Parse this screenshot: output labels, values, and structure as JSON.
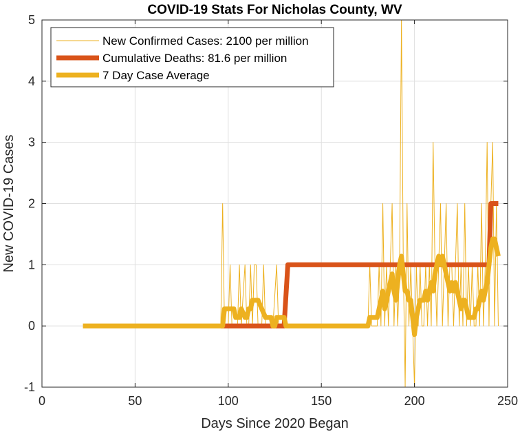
{
  "chart_data": {
    "type": "line",
    "title": "COVID-19 Stats For Nicholas County, WV",
    "xlabel": "Days Since 2020 Began",
    "ylabel": "New COVID-19 Cases",
    "xlim": [
      0,
      250
    ],
    "ylim": [
      -1,
      5
    ],
    "xticks": [
      0,
      50,
      100,
      150,
      200,
      250
    ],
    "yticks": [
      -1,
      0,
      1,
      2,
      3,
      4,
      5
    ],
    "grid": true,
    "legend_position": "top-left",
    "series": [
      {
        "name": "New Confirmed Cases: 2100 per million",
        "color": "#EDB120",
        "style": "thin",
        "points": [
          [
            22,
            0
          ],
          [
            96,
            0
          ],
          [
            97,
            2
          ],
          [
            98,
            0
          ],
          [
            100,
            0
          ],
          [
            101,
            1
          ],
          [
            102,
            0
          ],
          [
            105,
            0
          ],
          [
            106,
            1
          ],
          [
            107,
            0
          ],
          [
            109,
            1
          ],
          [
            110,
            0
          ],
          [
            111,
            0
          ],
          [
            112,
            1
          ],
          [
            113,
            0
          ],
          [
            114,
            1
          ],
          [
            115,
            1
          ],
          [
            116,
            0
          ],
          [
            118,
            0
          ],
          [
            119,
            1
          ],
          [
            120,
            0
          ],
          [
            122,
            0
          ],
          [
            123,
            0
          ],
          [
            124,
            0
          ],
          [
            126,
            1
          ],
          [
            127,
            0
          ],
          [
            130,
            0
          ],
          [
            131,
            0
          ],
          [
            175,
            0
          ],
          [
            176,
            1
          ],
          [
            177,
            0
          ],
          [
            179,
            0
          ],
          [
            180,
            0
          ],
          [
            181,
            1
          ],
          [
            182,
            0
          ],
          [
            183,
            2
          ],
          [
            184,
            0
          ],
          [
            185,
            1
          ],
          [
            186,
            0
          ],
          [
            187,
            1
          ],
          [
            188,
            2
          ],
          [
            189,
            0
          ],
          [
            190,
            1
          ],
          [
            191,
            0
          ],
          [
            192,
            1
          ],
          [
            193,
            5
          ],
          [
            194,
            1
          ],
          [
            195,
            -1
          ],
          [
            196,
            2
          ],
          [
            197,
            0
          ],
          [
            198,
            1
          ],
          [
            199,
            0
          ],
          [
            200,
            -1
          ],
          [
            201,
            1
          ],
          [
            202,
            0
          ],
          [
            203,
            1
          ],
          [
            204,
            0
          ],
          [
            205,
            0
          ],
          [
            206,
            1
          ],
          [
            207,
            0
          ],
          [
            208,
            1
          ],
          [
            209,
            0
          ],
          [
            210,
            3
          ],
          [
            211,
            1
          ],
          [
            212,
            0
          ],
          [
            213,
            1
          ],
          [
            214,
            2
          ],
          [
            215,
            0
          ],
          [
            216,
            1
          ],
          [
            217,
            2
          ],
          [
            218,
            0
          ],
          [
            219,
            1
          ],
          [
            220,
            1
          ],
          [
            221,
            0
          ],
          [
            222,
            1
          ],
          [
            223,
            2
          ],
          [
            224,
            0
          ],
          [
            225,
            1
          ],
          [
            226,
            0
          ],
          [
            227,
            2
          ],
          [
            228,
            0
          ],
          [
            229,
            1
          ],
          [
            230,
            0
          ],
          [
            231,
            1
          ],
          [
            232,
            0
          ],
          [
            233,
            0
          ],
          [
            234,
            1
          ],
          [
            235,
            0
          ],
          [
            236,
            2
          ],
          [
            237,
            0
          ],
          [
            238,
            1
          ],
          [
            239,
            3
          ],
          [
            240,
            0
          ],
          [
            241,
            2
          ],
          [
            242,
            3
          ],
          [
            243,
            0
          ],
          [
            244,
            2
          ],
          [
            245,
            0
          ]
        ]
      },
      {
        "name": "Cumulative Deaths: 81.6 per million",
        "color": "#D95319",
        "style": "thick",
        "points": [
          [
            96,
            0
          ],
          [
            130,
            0
          ],
          [
            132,
            1
          ],
          [
            240,
            1
          ],
          [
            241,
            2
          ],
          [
            245,
            2
          ]
        ]
      },
      {
        "name": "7 Day Case Average",
        "color": "#EDB120",
        "style": "thick",
        "points": [
          [
            22,
            0
          ],
          [
            97,
            0
          ],
          [
            98,
            0.28
          ],
          [
            103,
            0.28
          ],
          [
            104,
            0.14
          ],
          [
            106,
            0.14
          ],
          [
            107,
            0.28
          ],
          [
            109,
            0.14
          ],
          [
            110,
            0.14
          ],
          [
            111,
            0.28
          ],
          [
            112,
            0.28
          ],
          [
            113,
            0.42
          ],
          [
            116,
            0.42
          ],
          [
            118,
            0.28
          ],
          [
            120,
            0.14
          ],
          [
            123,
            0.14
          ],
          [
            124,
            0
          ],
          [
            125,
            0
          ],
          [
            126,
            0.14
          ],
          [
            130,
            0.14
          ],
          [
            131,
            0
          ],
          [
            175,
            0
          ],
          [
            176,
            0.14
          ],
          [
            180,
            0.14
          ],
          [
            181,
            0.28
          ],
          [
            182,
            0.42
          ],
          [
            183,
            0.57
          ],
          [
            184,
            0.28
          ],
          [
            185,
            0.42
          ],
          [
            186,
            0.57
          ],
          [
            187,
            0.71
          ],
          [
            188,
            0.85
          ],
          [
            189,
            0.57
          ],
          [
            190,
            0.42
          ],
          [
            191,
            0.71
          ],
          [
            192,
            1.0
          ],
          [
            193,
            1.14
          ],
          [
            194,
            0.85
          ],
          [
            195,
            0.57
          ],
          [
            196,
            0.57
          ],
          [
            197,
            0.42
          ],
          [
            198,
            0.42
          ],
          [
            199,
            0.14
          ],
          [
            200,
            -0.14
          ],
          [
            201,
            0.14
          ],
          [
            202,
            0.28
          ],
          [
            203,
            0.42
          ],
          [
            205,
            0.42
          ],
          [
            206,
            0.57
          ],
          [
            207,
            0.42
          ],
          [
            208,
            0.57
          ],
          [
            209,
            0.71
          ],
          [
            210,
            0.57
          ],
          [
            211,
            0.85
          ],
          [
            212,
            1.0
          ],
          [
            213,
            1.14
          ],
          [
            214,
            1.0
          ],
          [
            215,
            1.14
          ],
          [
            216,
            1.0
          ],
          [
            217,
            0.85
          ],
          [
            218,
            0.71
          ],
          [
            219,
            0.57
          ],
          [
            220,
            0.71
          ],
          [
            221,
            0.57
          ],
          [
            222,
            0.71
          ],
          [
            223,
            0.57
          ],
          [
            224,
            0.42
          ],
          [
            225,
            0.28
          ],
          [
            226,
            0.42
          ],
          [
            227,
            0.42
          ],
          [
            228,
            0.28
          ],
          [
            229,
            0.14
          ],
          [
            230,
            0.14
          ],
          [
            232,
            0.14
          ],
          [
            233,
            0.28
          ],
          [
            234,
            0.28
          ],
          [
            235,
            0.42
          ],
          [
            236,
            0.57
          ],
          [
            237,
            0.42
          ],
          [
            238,
            0.57
          ],
          [
            239,
            0.71
          ],
          [
            240,
            1.0
          ],
          [
            241,
            1.28
          ],
          [
            242,
            1.42
          ],
          [
            243,
            1.42
          ],
          [
            244,
            1.28
          ],
          [
            245,
            1.14
          ]
        ]
      }
    ]
  }
}
